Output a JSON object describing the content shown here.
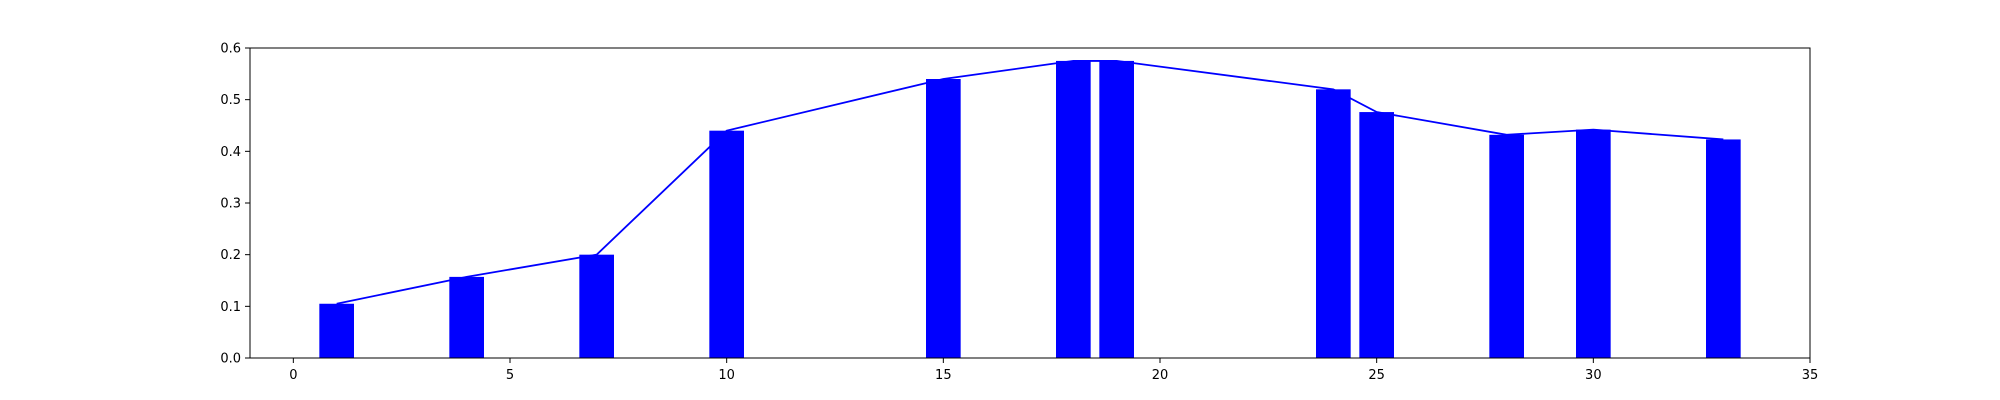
{
  "chart_data": {
    "type": "bar",
    "title": "",
    "xlabel": "",
    "ylabel": "",
    "xlim": [
      -1,
      35
    ],
    "ylim": [
      0,
      0.6
    ],
    "xticks": [
      0,
      5,
      10,
      15,
      20,
      25,
      30,
      35
    ],
    "yticks": [
      0.0,
      0.1,
      0.2,
      0.3,
      0.4,
      0.5,
      0.6
    ],
    "xtick_labels": [
      "0",
      "5",
      "10",
      "15",
      "20",
      "25",
      "30",
      "35"
    ],
    "ytick_labels": [
      "0.0",
      "0.1",
      "0.2",
      "0.3",
      "0.4",
      "0.5",
      "0.6"
    ],
    "grid": false,
    "bar_color": "#0000ff",
    "line_color": "#0000ff",
    "bar_width": 0.8,
    "x": [
      1,
      4,
      7,
      10,
      15,
      18,
      19,
      24,
      25,
      28,
      30,
      33
    ],
    "values": [
      0.105,
      0.157,
      0.2,
      0.44,
      0.54,
      0.575,
      0.575,
      0.52,
      0.476,
      0.432,
      0.442,
      0.423
    ]
  }
}
